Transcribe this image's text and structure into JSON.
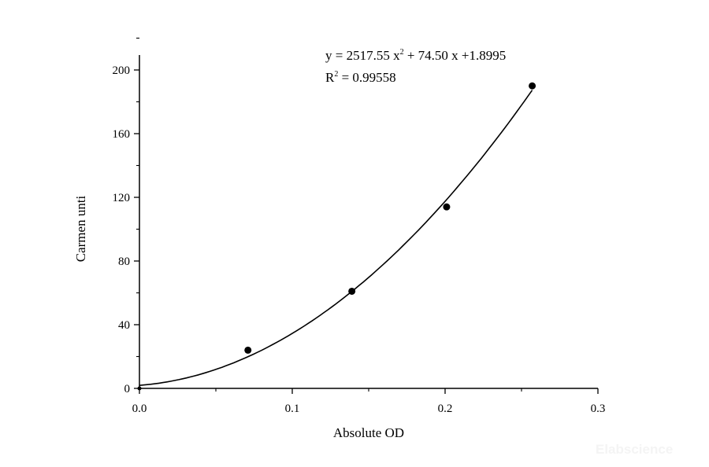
{
  "chart_data": {
    "type": "scatter",
    "xlabel": "Absolute OD",
    "ylabel": "Carmen unti",
    "xlim": [
      0,
      0.3
    ],
    "ylim": [
      0,
      200
    ],
    "x_ticks": [
      "0.0",
      "0.1",
      "0.2",
      "0.3"
    ],
    "y_ticks": [
      "0",
      "40",
      "80",
      "120",
      "160",
      "200"
    ],
    "grid": false,
    "points": [
      {
        "x": 0.0,
        "y": 0
      },
      {
        "x": 0.071,
        "y": 24
      },
      {
        "x": 0.139,
        "y": 61
      },
      {
        "x": 0.201,
        "y": 114
      },
      {
        "x": 0.257,
        "y": 190
      }
    ],
    "fit": {
      "type": "polynomial",
      "a": 2517.55,
      "b": 74.5,
      "c": 1.8995
    },
    "equation": {
      "prefix": "y = 2517.55 x",
      "sup": "2",
      "suffix": " + 74.50 x +1.8995"
    },
    "r_squared": {
      "prefix": "R",
      "sup": "2",
      "suffix": " = 0.99558"
    },
    "watermark": "Elabscience"
  }
}
